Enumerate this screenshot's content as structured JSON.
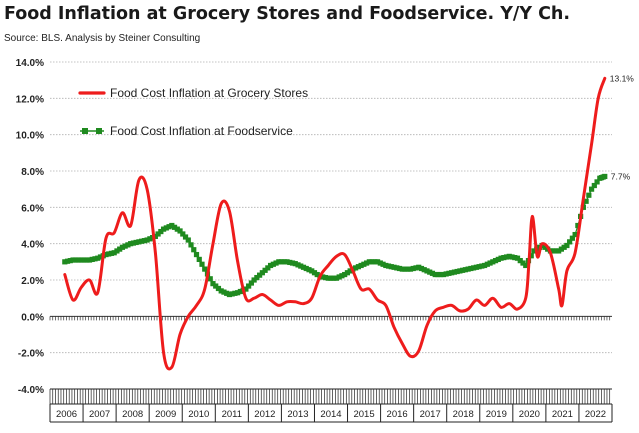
{
  "title": "Food Inflation at Grocery Stores and Foodservice. Y/Y Ch.",
  "source": "Source:  BLS.  Analysis by Steiner Consulting",
  "chart_data": {
    "type": "line",
    "grid": "horizontal",
    "legend_position": "top-left",
    "ylim": [
      -4,
      14
    ],
    "yticks": [
      -4,
      -2,
      0,
      2,
      4,
      6,
      8,
      10,
      12,
      14
    ],
    "ytick_labels": [
      "-4.0%",
      "-2.0%",
      "0.0%",
      "2.0%",
      "4.0%",
      "6.0%",
      "8.0%",
      "10.0%",
      "12.0%",
      "14.0%"
    ],
    "x_categories": [
      "2006",
      "2007",
      "2008",
      "2009",
      "2010",
      "2011",
      "2012",
      "2013",
      "2014",
      "2015",
      "2016",
      "2017",
      "2018",
      "2019",
      "2020",
      "2021",
      "2022"
    ],
    "series": [
      {
        "name": "Food Cost Inflation at Grocery Stores",
        "color": "#ee1c1c",
        "marker": "none",
        "end_label": "13.1%",
        "x": [
          2006.0,
          2006.25,
          2006.5,
          2006.75,
          2007.0,
          2007.25,
          2007.5,
          2007.75,
          2008.0,
          2008.25,
          2008.5,
          2008.75,
          2009.0,
          2009.25,
          2009.5,
          2009.75,
          2010.0,
          2010.25,
          2010.5,
          2010.75,
          2011.0,
          2011.25,
          2011.5,
          2011.75,
          2012.0,
          2012.25,
          2012.5,
          2012.75,
          2013.0,
          2013.25,
          2013.5,
          2013.75,
          2014.0,
          2014.25,
          2014.5,
          2014.75,
          2015.0,
          2015.25,
          2015.5,
          2015.75,
          2016.0,
          2016.25,
          2016.5,
          2016.75,
          2017.0,
          2017.25,
          2017.5,
          2017.75,
          2018.0,
          2018.25,
          2018.5,
          2018.75,
          2019.0,
          2019.25,
          2019.5,
          2019.75,
          2020.0,
          2020.1,
          2020.2,
          2020.35,
          2020.5,
          2020.75,
          2021.0,
          2021.1,
          2021.25,
          2021.5,
          2021.75,
          2022.0,
          2022.2,
          2022.4
        ],
        "values": [
          2.3,
          0.9,
          1.6,
          2.0,
          1.3,
          4.3,
          4.6,
          5.7,
          5.0,
          7.5,
          7.0,
          3.5,
          -2.0,
          -2.8,
          -1.0,
          0.0,
          0.6,
          1.5,
          4.0,
          6.2,
          5.8,
          3.0,
          1.0,
          1.0,
          1.2,
          0.9,
          0.6,
          0.8,
          0.8,
          0.7,
          1.0,
          2.2,
          2.8,
          3.3,
          3.4,
          2.5,
          1.5,
          1.5,
          0.9,
          0.6,
          -0.6,
          -1.5,
          -2.2,
          -1.9,
          -0.5,
          0.3,
          0.5,
          0.6,
          0.3,
          0.4,
          0.9,
          0.6,
          1.0,
          0.5,
          0.7,
          0.4,
          1.0,
          3.0,
          5.5,
          3.3,
          4.0,
          3.5,
          1.5,
          0.6,
          2.5,
          3.5,
          6.5,
          9.5,
          12.0,
          13.1
        ]
      },
      {
        "name": "Food Cost Inflation at Foodservice",
        "color": "#1f8a1f",
        "marker": "square",
        "end_label": "7.7%",
        "x": [
          2006.0,
          2006.25,
          2006.5,
          2006.75,
          2007.0,
          2007.25,
          2007.5,
          2007.75,
          2008.0,
          2008.25,
          2008.5,
          2008.75,
          2009.0,
          2009.25,
          2009.5,
          2009.75,
          2010.0,
          2010.25,
          2010.5,
          2010.75,
          2011.0,
          2011.25,
          2011.5,
          2011.75,
          2012.0,
          2012.25,
          2012.5,
          2012.75,
          2013.0,
          2013.25,
          2013.5,
          2013.75,
          2014.0,
          2014.25,
          2014.5,
          2014.75,
          2015.0,
          2015.25,
          2015.5,
          2015.75,
          2016.0,
          2016.25,
          2016.5,
          2016.75,
          2017.0,
          2017.25,
          2017.5,
          2017.75,
          2018.0,
          2018.25,
          2018.5,
          2018.75,
          2019.0,
          2019.25,
          2019.5,
          2019.75,
          2020.0,
          2020.25,
          2020.5,
          2020.75,
          2021.0,
          2021.25,
          2021.5,
          2021.75,
          2022.0,
          2022.25,
          2022.4
        ],
        "values": [
          3.0,
          3.1,
          3.1,
          3.1,
          3.2,
          3.4,
          3.5,
          3.8,
          4.0,
          4.1,
          4.2,
          4.4,
          4.8,
          5.0,
          4.7,
          4.2,
          3.4,
          2.6,
          1.8,
          1.4,
          1.2,
          1.3,
          1.5,
          2.0,
          2.4,
          2.8,
          3.0,
          3.0,
          2.9,
          2.7,
          2.5,
          2.2,
          2.1,
          2.1,
          2.3,
          2.6,
          2.8,
          3.0,
          3.0,
          2.8,
          2.7,
          2.6,
          2.6,
          2.7,
          2.5,
          2.3,
          2.3,
          2.4,
          2.5,
          2.6,
          2.7,
          2.8,
          3.0,
          3.2,
          3.3,
          3.2,
          2.8,
          3.6,
          3.9,
          3.6,
          3.6,
          3.9,
          4.5,
          6.0,
          7.0,
          7.6,
          7.7
        ]
      }
    ]
  }
}
